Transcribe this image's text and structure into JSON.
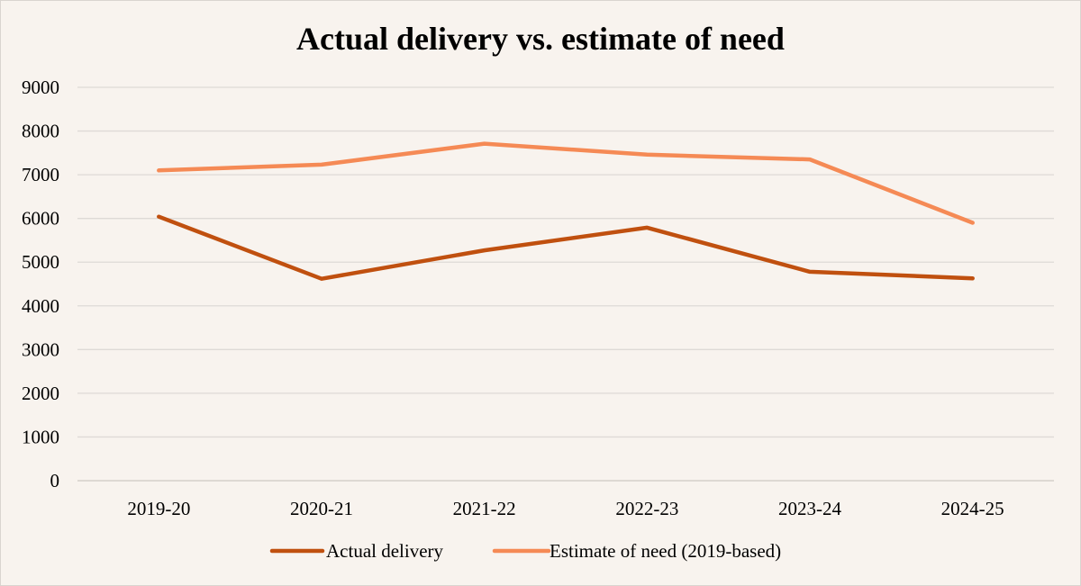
{
  "chart_data": {
    "type": "line",
    "title": "Actual delivery vs. estimate of need",
    "xlabel": "",
    "ylabel": "",
    "categories": [
      "2019-20",
      "2020-21",
      "2021-22",
      "2022-23",
      "2023-24",
      "2024-25"
    ],
    "ylim": [
      0,
      9000
    ],
    "yticks": [
      "0",
      "1000",
      "2000",
      "3000",
      "4000",
      "5000",
      "6000",
      "7000",
      "8000",
      "9000"
    ],
    "grid": true,
    "legend_position": "bottom",
    "series": [
      {
        "name": "Actual delivery",
        "color": "#c0500f",
        "values": [
          6040,
          4620,
          5270,
          5790,
          4780,
          4630
        ]
      },
      {
        "name": "Estimate of need (2019-based)",
        "color": "#f58a55",
        "values": [
          7100,
          7230,
          7710,
          7460,
          7350,
          5900
        ]
      }
    ]
  }
}
